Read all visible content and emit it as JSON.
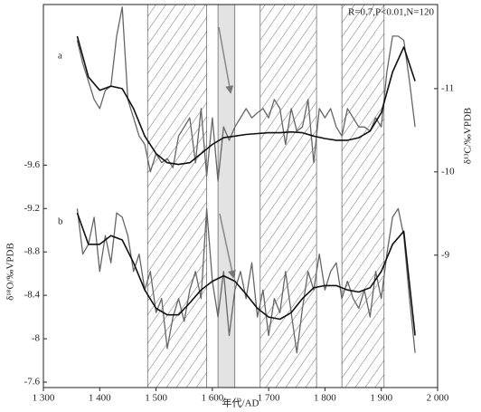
{
  "chart_data": {
    "type": "line",
    "annotation": "R=0.7,P<0.01,N=120",
    "panel_labels": [
      "a",
      "b"
    ],
    "xlabel": "年代/AD",
    "ylabel": "δ¹⁸O/‰VPDB",
    "y2label": "δ¹³C/‰VPDB",
    "xlim": [
      1300,
      2000
    ],
    "xticks": [
      {
        "value": 1300,
        "label": "1 300"
      },
      {
        "value": 1400,
        "label": "1 400"
      },
      {
        "value": 1500,
        "label": "1 500"
      },
      {
        "value": 1600,
        "label": "1 600"
      },
      {
        "value": 1700,
        "label": "1 700"
      },
      {
        "value": 1800,
        "label": "1 800"
      },
      {
        "value": 1900,
        "label": "1 900"
      },
      {
        "value": 2000,
        "label": "2 000"
      }
    ],
    "ylim": [
      -7.55,
      -11.08
    ],
    "yticks": [
      -9.6,
      -9.2,
      -8.8,
      -8.4,
      -8,
      -7.6
    ],
    "y2lim": [
      -7.41,
      -12.01
    ],
    "y2ticks": [
      -11,
      -10,
      -9
    ],
    "periods": [
      {
        "start": 1485,
        "end": 1590,
        "fill": "hatch"
      },
      {
        "start": 1610,
        "end": 1640,
        "fill": "#e3e3e3"
      },
      {
        "start": 1685,
        "end": 1785,
        "fill": "hatch"
      },
      {
        "start": 1830,
        "end": 1905,
        "fill": "hatch"
      }
    ],
    "series": [
      {
        "axis": "y2",
        "color": "#666666",
        "width": 1.3,
        "x": [
          1360,
          1370,
          1380,
          1390,
          1400,
          1410,
          1420,
          1430,
          1440,
          1450,
          1460,
          1470,
          1480,
          1490,
          1500,
          1510,
          1520,
          1530,
          1540,
          1550,
          1560,
          1570,
          1580,
          1590,
          1600,
          1610,
          1620,
          1630,
          1640,
          1650,
          1660,
          1670,
          1680,
          1690,
          1700,
          1710,
          1720,
          1730,
          1740,
          1750,
          1760,
          1770,
          1780,
          1790,
          1800,
          1810,
          1820,
          1830,
          1840,
          1850,
          1860,
          1870,
          1880,
          1890,
          1900,
          1910,
          1920,
          1930,
          1940,
          1950,
          1960
        ],
        "values": [
          -11.58,
          -11.3,
          -11.09,
          -10.87,
          -10.76,
          -10.98,
          -11.03,
          -11.63,
          -11.98,
          -10.87,
          -10.65,
          -10.43,
          -10.33,
          -10.0,
          -10.22,
          -10.11,
          -10.16,
          -10.05,
          -10.43,
          -10.54,
          -10.65,
          -10.11,
          -10.76,
          -9.95,
          -10.65,
          -9.89,
          -10.54,
          -10.38,
          -10.54,
          -10.65,
          -10.76,
          -10.65,
          -10.71,
          -10.76,
          -10.65,
          -10.87,
          -10.76,
          -10.33,
          -10.76,
          -10.49,
          -10.54,
          -10.87,
          -10.11,
          -10.76,
          -10.65,
          -10.76,
          -10.54,
          -10.43,
          -10.76,
          -10.65,
          -10.54,
          -10.54,
          -10.49,
          -10.65,
          -10.54,
          -11.2,
          -11.63,
          -11.63,
          -11.58,
          -11.09,
          -10.54
        ]
      },
      {
        "axis": "y2",
        "color": "#111111",
        "width": 1.6,
        "x": [
          1360,
          1380,
          1400,
          1420,
          1440,
          1460,
          1480,
          1500,
          1520,
          1540,
          1560,
          1580,
          1600,
          1620,
          1640,
          1660,
          1680,
          1700,
          1720,
          1740,
          1760,
          1780,
          1800,
          1820,
          1840,
          1860,
          1880,
          1900,
          1920,
          1940,
          1960
        ],
        "values": [
          -11.63,
          -11.14,
          -10.98,
          -11.03,
          -11.0,
          -10.76,
          -10.43,
          -10.22,
          -10.11,
          -10.09,
          -10.11,
          -10.22,
          -10.33,
          -10.41,
          -10.43,
          -10.45,
          -10.46,
          -10.47,
          -10.47,
          -10.48,
          -10.47,
          -10.43,
          -10.4,
          -10.38,
          -10.38,
          -10.41,
          -10.49,
          -10.71,
          -11.2,
          -11.5,
          -11.09
        ]
      },
      {
        "axis": "y",
        "color": "#666666",
        "width": 1.3,
        "x": [
          1360,
          1370,
          1380,
          1390,
          1400,
          1410,
          1420,
          1430,
          1440,
          1450,
          1460,
          1470,
          1480,
          1490,
          1500,
          1510,
          1520,
          1530,
          1540,
          1550,
          1560,
          1570,
          1580,
          1590,
          1600,
          1610,
          1620,
          1630,
          1640,
          1650,
          1660,
          1670,
          1680,
          1690,
          1700,
          1710,
          1720,
          1730,
          1740,
          1750,
          1760,
          1770,
          1780,
          1790,
          1800,
          1810,
          1820,
          1830,
          1840,
          1850,
          1860,
          1870,
          1880,
          1890,
          1900,
          1910,
          1920,
          1930,
          1940,
          1950,
          1960
        ],
        "values": [
          -9.2,
          -8.78,
          -8.87,
          -9.12,
          -8.62,
          -8.95,
          -8.7,
          -9.16,
          -9.12,
          -8.95,
          -8.62,
          -8.78,
          -8.45,
          -8.62,
          -8.24,
          -8.37,
          -7.91,
          -8.2,
          -8.37,
          -8.16,
          -8.45,
          -8.62,
          -8.37,
          -9.2,
          -8.53,
          -8.2,
          -8.62,
          -8.03,
          -8.45,
          -8.62,
          -8.37,
          -8.7,
          -8.2,
          -8.45,
          -8.03,
          -8.37,
          -8.24,
          -8.62,
          -8.24,
          -7.87,
          -8.28,
          -8.62,
          -8.45,
          -8.78,
          -8.45,
          -8.62,
          -8.7,
          -8.37,
          -8.53,
          -8.37,
          -8.28,
          -8.45,
          -8.2,
          -8.62,
          -8.37,
          -8.78,
          -9.12,
          -9.2,
          -8.95,
          -8.37,
          -7.87
        ]
      },
      {
        "axis": "y",
        "color": "#111111",
        "width": 1.6,
        "x": [
          1360,
          1380,
          1400,
          1420,
          1440,
          1460,
          1480,
          1500,
          1520,
          1540,
          1560,
          1580,
          1600,
          1620,
          1640,
          1660,
          1680,
          1700,
          1720,
          1740,
          1760,
          1780,
          1800,
          1820,
          1840,
          1860,
          1880,
          1900,
          1920,
          1940,
          1960
        ],
        "values": [
          -9.16,
          -8.87,
          -8.87,
          -8.95,
          -8.91,
          -8.7,
          -8.45,
          -8.28,
          -8.22,
          -8.22,
          -8.33,
          -8.45,
          -8.53,
          -8.58,
          -8.53,
          -8.41,
          -8.28,
          -8.2,
          -8.18,
          -8.24,
          -8.37,
          -8.47,
          -8.49,
          -8.49,
          -8.45,
          -8.43,
          -8.47,
          -8.62,
          -8.87,
          -8.99,
          -8.03
        ]
      }
    ]
  }
}
